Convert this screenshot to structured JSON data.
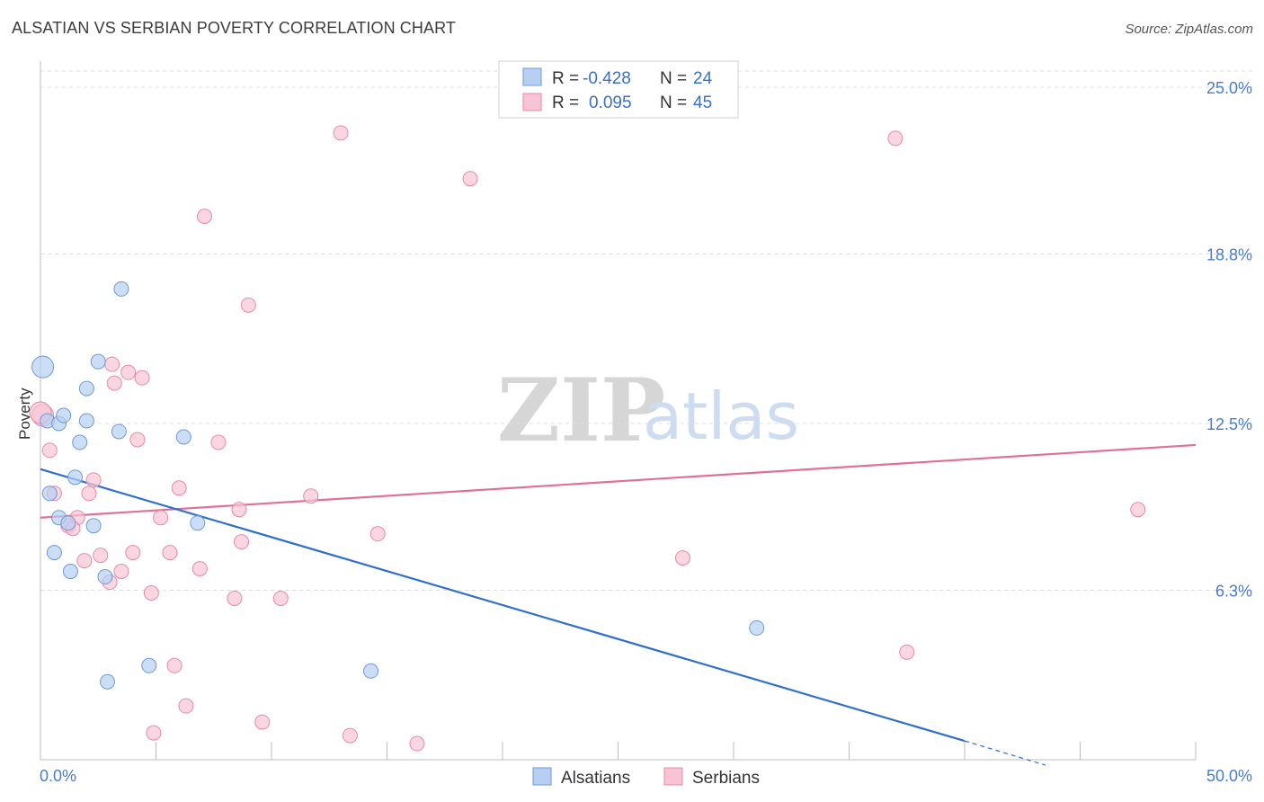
{
  "header": {
    "title": "ALSATIAN VS SERBIAN POVERTY CORRELATION CHART",
    "source": "Source: ZipAtlas.com"
  },
  "watermark": {
    "zip": "ZIP",
    "atlas": "atlas"
  },
  "colors": {
    "blue_fill": "#b7d0f2",
    "blue_stroke": "#6d9ad8",
    "blue_line": "#2f6fce",
    "pink_fill": "#f8c4d4",
    "pink_stroke": "#e68aa8",
    "pink_line": "#e0709a",
    "grid": "#dcdcdc",
    "axis_label": "#4a7cc9"
  },
  "legend": {
    "rows": [
      {
        "r_label": "R =",
        "r_value": "-0.428",
        "n_label": "N =",
        "n_value": "24",
        "series": "blue"
      },
      {
        "r_label": "R =",
        "r_value": "0.095",
        "n_label": "N =",
        "n_value": "45",
        "series": "pink"
      }
    ]
  },
  "bottom_legend": [
    "Alsatians",
    "Serbians"
  ],
  "chart_data": {
    "type": "scatter",
    "title": "ALSATIAN VS SERBIAN POVERTY CORRELATION CHART",
    "xlabel": "",
    "ylabel": "Poverty",
    "xlim": [
      0,
      50
    ],
    "ylim": [
      0,
      25.0
    ],
    "x_tick_labels": [
      "0.0%",
      "50.0%"
    ],
    "y_ticks": [
      6.3,
      12.5,
      18.8,
      25.0
    ],
    "y_tick_labels": [
      "6.3%",
      "12.5%",
      "18.8%",
      "25.0%"
    ],
    "grid": true,
    "series": [
      {
        "name": "Alsatians",
        "r": -0.428,
        "n": 24,
        "trend": {
          "x0": 0,
          "y0": 10.8,
          "x1": 40,
          "y1": 0.7,
          "dash_to_x": 43.5,
          "dash_to_y": -0.2
        },
        "points": [
          [
            0.1,
            14.6
          ],
          [
            0.3,
            12.6
          ],
          [
            0.8,
            12.5
          ],
          [
            1.0,
            12.8
          ],
          [
            2.0,
            13.8
          ],
          [
            2.0,
            12.6
          ],
          [
            3.5,
            17.5
          ],
          [
            2.5,
            14.8
          ],
          [
            1.7,
            11.8
          ],
          [
            3.4,
            12.2
          ],
          [
            6.2,
            12.0
          ],
          [
            1.5,
            10.5
          ],
          [
            0.4,
            9.9
          ],
          [
            0.8,
            9.0
          ],
          [
            1.2,
            8.8
          ],
          [
            2.3,
            8.7
          ],
          [
            6.8,
            8.8
          ],
          [
            0.6,
            7.7
          ],
          [
            1.3,
            7.0
          ],
          [
            2.8,
            6.8
          ],
          [
            31.0,
            4.9
          ],
          [
            4.7,
            3.5
          ],
          [
            14.3,
            3.3
          ],
          [
            2.9,
            2.9
          ]
        ]
      },
      {
        "name": "Serbians",
        "r": 0.095,
        "n": 45,
        "trend": {
          "x0": 0,
          "y0": 9.0,
          "x1": 50,
          "y1": 11.7
        },
        "points": [
          [
            0.1,
            12.8
          ],
          [
            0.4,
            11.5
          ],
          [
            13.0,
            23.3
          ],
          [
            18.6,
            21.6
          ],
          [
            37.0,
            23.1
          ],
          [
            7.1,
            20.2
          ],
          [
            9.0,
            16.9
          ],
          [
            3.1,
            14.7
          ],
          [
            3.8,
            14.4
          ],
          [
            4.4,
            14.2
          ],
          [
            3.2,
            14.0
          ],
          [
            4.2,
            11.9
          ],
          [
            7.7,
            11.8
          ],
          [
            0.6,
            9.9
          ],
          [
            2.3,
            10.4
          ],
          [
            6.0,
            10.1
          ],
          [
            2.1,
            9.9
          ],
          [
            11.7,
            9.8
          ],
          [
            8.6,
            9.3
          ],
          [
            5.2,
            9.0
          ],
          [
            1.6,
            9.0
          ],
          [
            1.2,
            8.7
          ],
          [
            1.4,
            8.6
          ],
          [
            14.6,
            8.4
          ],
          [
            8.7,
            8.1
          ],
          [
            47.5,
            9.3
          ],
          [
            2.6,
            7.6
          ],
          [
            4.0,
            7.7
          ],
          [
            5.6,
            7.7
          ],
          [
            27.8,
            7.5
          ],
          [
            1.9,
            7.4
          ],
          [
            3.5,
            7.0
          ],
          [
            6.9,
            7.1
          ],
          [
            3.0,
            6.6
          ],
          [
            4.8,
            6.2
          ],
          [
            8.4,
            6.0
          ],
          [
            10.4,
            6.0
          ],
          [
            37.5,
            4.0
          ],
          [
            5.8,
            3.5
          ],
          [
            6.3,
            2.0
          ],
          [
            9.6,
            1.4
          ],
          [
            4.9,
            1.0
          ],
          [
            13.4,
            0.9
          ],
          [
            16.3,
            0.6
          ],
          [
            0.0,
            12.9
          ]
        ]
      }
    ]
  }
}
